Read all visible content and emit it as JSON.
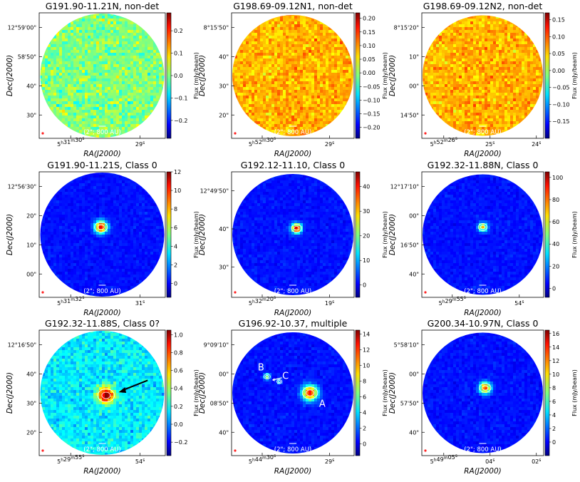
{
  "figure": {
    "ra_label": "RA(J2000)",
    "dec_label": "Dec(J2000)",
    "cbar_label": "Flux (mJy/beam)"
  },
  "chart_data": [
    {
      "type": "heatmap",
      "title": "G191.90-11.21N, non-det",
      "xlabel": "RA(J2000)",
      "ylabel": "Dec(J2000)",
      "scale_bar": "(2\"; 800 AU)",
      "colormap": "jet",
      "background": "noise",
      "clim": [
        -0.28,
        0.28
      ],
      "cbar_ticks": [
        "0.2",
        "0.1",
        "0.0",
        "−0.1",
        "−0.2"
      ],
      "cbar_values": [
        0.2,
        0.1,
        0.0,
        -0.1,
        -0.2
      ],
      "ra_ticks": [
        "5h31m30s",
        "29s"
      ],
      "dec_ticks": [
        "12°59'00\"",
        "58'50\"",
        "40\"",
        "30\""
      ],
      "sources": [],
      "labels": []
    },
    {
      "type": "heatmap",
      "title": "G198.69-09.12N1, non-det",
      "xlabel": "RA(J2000)",
      "ylabel": "Dec(J2000)",
      "scale_bar": "(2\"; 800 AU)",
      "colormap": "jet",
      "background": "warm-noise",
      "clim": [
        -0.24,
        0.22
      ],
      "cbar_ticks": [
        "0.20",
        "0.15",
        "0.10",
        "0.05",
        "0.00",
        "−0.05",
        "−0.10",
        "−0.15",
        "−0.20"
      ],
      "cbar_values": [
        0.2,
        0.15,
        0.1,
        0.05,
        0.0,
        -0.05,
        -0.1,
        -0.15,
        -0.2
      ],
      "ra_ticks": [
        "5h52m30s",
        "29s"
      ],
      "dec_ticks": [
        "8°15'50\"",
        "40\"",
        "30\"",
        "20\""
      ],
      "sources": [],
      "labels": []
    },
    {
      "type": "heatmap",
      "title": "G198.69-09.12N2, non-det",
      "xlabel": "RA(J2000)",
      "ylabel": "Dec(J2000)",
      "scale_bar": "(2\"; 800 AU)",
      "colormap": "jet",
      "background": "warm-noise",
      "clim": [
        -0.2,
        0.17
      ],
      "cbar_ticks": [
        "0.15",
        "0.10",
        "0.05",
        "0.00",
        "−0.05",
        "−0.10",
        "−0.15"
      ],
      "cbar_values": [
        0.15,
        0.1,
        0.05,
        0.0,
        -0.05,
        -0.1,
        -0.15
      ],
      "ra_ticks": [
        "5h52m26s",
        "25s",
        "24s"
      ],
      "dec_ticks": [
        "8°15'20\"",
        "10\"",
        "00\"",
        "14'50\""
      ],
      "sources": [],
      "labels": []
    },
    {
      "type": "heatmap",
      "title": "G191.90-11.21S, Class 0",
      "xlabel": "RA(J2000)",
      "ylabel": "Dec(J2000)",
      "scale_bar": "(2\"; 800 AU)",
      "colormap": "jet",
      "background": "blue",
      "clim": [
        -1.5,
        12
      ],
      "cbar_ticks": [
        "12",
        "10",
        "8",
        "6",
        "4",
        "2",
        "0"
      ],
      "cbar_values": [
        12,
        10,
        8,
        6,
        4,
        2,
        0
      ],
      "ra_ticks": [
        "5h31m32s",
        "31s"
      ],
      "dec_ticks": [
        "12°56'30\"",
        "20\"",
        "10\"",
        "00\""
      ],
      "sources": [
        {
          "u": 0.49,
          "v": 0.44,
          "peak": 10,
          "size": 1.0
        }
      ],
      "labels": []
    },
    {
      "type": "heatmap",
      "title": "G192.12-11.10, Class 0",
      "xlabel": "RA(J2000)",
      "ylabel": "Dec(J2000)",
      "scale_bar": "(2\"; 800 AU)",
      "colormap": "jet",
      "background": "blue",
      "clim": [
        -5,
        46
      ],
      "cbar_ticks": [
        "40",
        "30",
        "20",
        "10",
        "0"
      ],
      "cbar_values": [
        40,
        30,
        20,
        10,
        0
      ],
      "ra_ticks": [
        "5h32m20s",
        "19s"
      ],
      "dec_ticks": [
        "12°49'50\"",
        "40\"",
        "30\""
      ],
      "sources": [
        {
          "u": 0.53,
          "v": 0.45,
          "peak": 40,
          "size": 0.8
        }
      ],
      "labels": []
    },
    {
      "type": "heatmap",
      "title": "G192.32-11.88N, Class 0",
      "xlabel": "RA(J2000)",
      "ylabel": "Dec(J2000)",
      "scale_bar": "(2\"; 800 AU)",
      "colormap": "jet",
      "background": "blue",
      "clim": [
        -8,
        105
      ],
      "cbar_ticks": [
        "100",
        "80",
        "60",
        "40",
        "20",
        "0"
      ],
      "cbar_values": [
        100,
        80,
        60,
        40,
        20,
        0
      ],
      "ra_ticks": [
        "5h29m55s",
        "54s"
      ],
      "dec_ticks": [
        "12°17'10\"",
        "00\"",
        "16'50\"",
        "40\""
      ],
      "sources": [
        {
          "u": 0.5,
          "v": 0.44,
          "peak": 60,
          "size": 0.7
        }
      ],
      "labels": []
    },
    {
      "type": "heatmap",
      "title": "G192.32-11.88S, Class 0?",
      "xlabel": "RA(J2000)",
      "ylabel": "Dec(J2000)",
      "scale_bar": "(2\"; 800 AU)",
      "colormap": "jet",
      "background": "green-noise",
      "clim": [
        -0.35,
        1.05
      ],
      "cbar_ticks": [
        "1.0",
        "0.8",
        "0.6",
        "0.4",
        "0.2",
        "0.0",
        "−0.2"
      ],
      "cbar_values": [
        1.0,
        0.8,
        0.6,
        0.4,
        0.2,
        0.0,
        -0.2
      ],
      "ra_ticks": [
        "5h29m55s",
        "54s"
      ],
      "dec_ticks": [
        "12°16'50\"",
        "40\"",
        "30\"",
        "20\""
      ],
      "sources": [
        {
          "u": 0.53,
          "v": 0.52,
          "peak": 0.7,
          "size": 1.3
        }
      ],
      "labels": []
    },
    {
      "type": "heatmap",
      "title": "G196.92-10.37, multiple",
      "xlabel": "RA(J2000)",
      "ylabel": "Dec(J2000)",
      "scale_bar": "(2\"; 800 AU)",
      "colormap": "jet",
      "background": "blue",
      "clim": [
        -1.5,
        14.5
      ],
      "cbar_ticks": [
        "14",
        "12",
        "10",
        "8",
        "6",
        "4",
        "2",
        "0"
      ],
      "cbar_values": [
        14,
        12,
        10,
        8,
        6,
        4,
        2,
        0
      ],
      "ra_ticks": [
        "5h44m30s",
        "29s"
      ],
      "dec_ticks": [
        "9°09'10\"",
        "00\"",
        "08'50\"",
        "40\""
      ],
      "sources": [
        {
          "u": 0.64,
          "v": 0.5,
          "peak": 12,
          "size": 1.2
        },
        {
          "u": 0.29,
          "v": 0.37,
          "peak": 5,
          "size": 0.5
        },
        {
          "u": 0.39,
          "v": 0.41,
          "peak": 3,
          "size": 0.4
        }
      ],
      "labels": [
        "A",
        "B",
        "C"
      ]
    },
    {
      "type": "heatmap",
      "title": "G200.34-10.97N, Class 0",
      "xlabel": "RA(J2000)",
      "ylabel": "Dec(J2000)",
      "scale_bar": "(2\"; 800 AU)",
      "colormap": "jet",
      "background": "blue",
      "clim": [
        -2,
        16.5
      ],
      "cbar_ticks": [
        "16",
        "14",
        "12",
        "10",
        "8",
        "6",
        "4",
        "2",
        "0"
      ],
      "cbar_values": [
        16,
        14,
        12,
        10,
        8,
        6,
        4,
        2,
        0
      ],
      "ra_ticks": [
        "5h49m05s",
        "04s",
        "02s"
      ],
      "dec_ticks": [
        "5°58'10\"",
        "00\"",
        "57'50\"",
        "40\""
      ],
      "sources": [
        {
          "u": 0.52,
          "v": 0.46,
          "peak": 12,
          "size": 0.9
        }
      ],
      "labels": []
    }
  ]
}
